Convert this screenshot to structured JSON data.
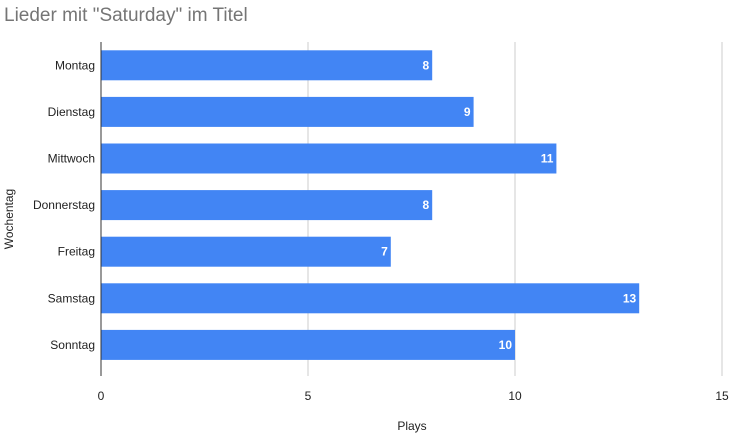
{
  "chart_data": {
    "type": "bar",
    "orientation": "horizontal",
    "title": "Lieder mit \"Saturday\" im Titel",
    "xlabel": "Plays",
    "ylabel": "Wochentag",
    "categories": [
      "Montag",
      "Dienstag",
      "Mittwoch",
      "Donnerstag",
      "Freitag",
      "Samstag",
      "Sonntag"
    ],
    "values": [
      8,
      9,
      11,
      8,
      7,
      13,
      10
    ],
    "xlim": [
      0,
      15
    ],
    "xticks": [
      0,
      5,
      10,
      15
    ],
    "grid": true,
    "data_labels": true,
    "colors": {
      "bar": "#4285f4",
      "grid": "#cccccc",
      "axis": "#333333",
      "title": "#757575"
    }
  }
}
